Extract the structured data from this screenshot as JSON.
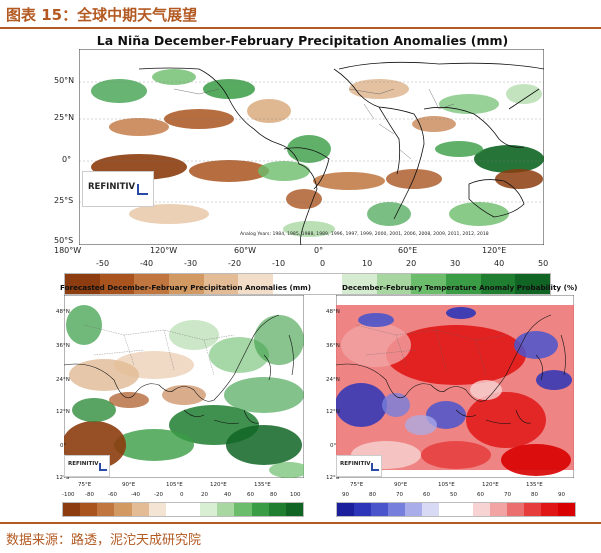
{
  "figure_title": "图表 15：全球中期天气展望",
  "source": "数据来源：路透，泥沱天成研究院",
  "top_map": {
    "title": "La Niña December-February Precipitation Anomalies (mm)",
    "lat_labels": [
      "50°N",
      "25°N",
      "0°",
      "25°S",
      "50°S"
    ],
    "lon_labels": [
      "180°W",
      "120°W",
      "60°W",
      "0°",
      "60°E",
      "120°E"
    ],
    "analog_text": "Analog Years: 1984, 1985, 1988, 1989, 1996, 1997, 1999, 2000, 2001, 2006, 2008, 2009, 2011, 2012, 2018",
    "logo_text": "REFINITIV",
    "colorbar_ticks": [
      "-50",
      "-40",
      "-30",
      "-20",
      "-10",
      "0",
      "10",
      "20",
      "30",
      "40",
      "50"
    ],
    "colorbar_colors": [
      "#8c3c0e",
      "#a9541f",
      "#c0763e",
      "#d29963",
      "#e3bc95",
      "#f1ddc8",
      "#ffffff",
      "#ffffff",
      "#d5ecd0",
      "#a7d6a0",
      "#6bbd6b",
      "#3a9c45",
      "#1f7e30",
      "#106524"
    ]
  },
  "left_map": {
    "title": "Forecasted December-February Precipitation Anomalies (mm)",
    "lat_labels": [
      "48°N",
      "36°N",
      "24°N",
      "12°N",
      "0°",
      "12°S"
    ],
    "lon_labels": [
      "75°E",
      "90°E",
      "105°E",
      "120°E",
      "135°E"
    ],
    "logo_text": "REFINITIV",
    "colorbar_ticks": [
      "-100",
      "-80",
      "-60",
      "-40",
      "-20",
      "0",
      "20",
      "40",
      "60",
      "80",
      "100"
    ],
    "colorbar_colors": [
      "#8c3c0e",
      "#a9541f",
      "#c0763e",
      "#d29963",
      "#e3bc95",
      "#f3e4d4",
      "#ffffff",
      "#ffffff",
      "#d9efd3",
      "#a9d7a2",
      "#6bbd6b",
      "#3a9c45",
      "#1f7e30",
      "#106524"
    ]
  },
  "right_map": {
    "title": "December-February Temperature Anomaly Probability (%)",
    "lat_labels": [
      "48°N",
      "36°N",
      "24°N",
      "12°N",
      "0°",
      "12°S"
    ],
    "lon_labels": [
      "75°E",
      "90°E",
      "105°E",
      "120°E",
      "135°E"
    ],
    "logo_text": "REFINITIV",
    "colorbar_ticks": [
      "90",
      "80",
      "70",
      "60",
      "50",
      "60",
      "70",
      "80",
      "90"
    ],
    "colorbar_colors": [
      "#1b1f9c",
      "#2d35b8",
      "#4a55cc",
      "#7680dc",
      "#a9aeea",
      "#d7d9f5",
      "#ffffff",
      "#ffffff",
      "#f8d3d3",
      "#f2a4a4",
      "#ec6f6f",
      "#e63c3c",
      "#e01616",
      "#d80000"
    ]
  }
}
